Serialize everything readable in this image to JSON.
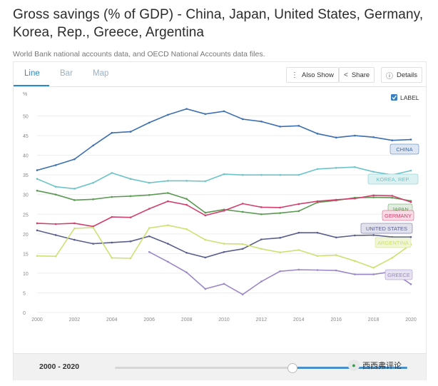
{
  "title": "Gross savings (% of GDP) - China, Japan, United States, Germany, Korea, Rep., Greece, Argentina",
  "subtitle": "World Bank national accounts data, and OECD National Accounts data files.",
  "tabs": [
    "Line",
    "Bar",
    "Map"
  ],
  "buttons": {
    "also_show": "Also Show",
    "share": "Share",
    "details": "Details"
  },
  "label_toggle": "LABEL",
  "range_label": "2000 - 2020",
  "watermark": "西西弗评论",
  "chart_data": {
    "type": "line",
    "ylabel": "%",
    "ylim": [
      0,
      55
    ],
    "yticks": [
      0,
      5,
      10,
      15,
      20,
      25,
      30,
      35,
      40,
      45,
      50
    ],
    "xlim": [
      2000,
      2020
    ],
    "xticks": [
      2000,
      2002,
      2004,
      2006,
      2008,
      2010,
      2012,
      2014,
      2016,
      2018,
      2020
    ],
    "x": [
      2000,
      2001,
      2002,
      2003,
      2004,
      2005,
      2006,
      2007,
      2008,
      2009,
      2010,
      2011,
      2012,
      2013,
      2014,
      2015,
      2016,
      2017,
      2018,
      2019,
      2020
    ],
    "series": [
      {
        "name": "CHINA",
        "color": "#3c6fb0",
        "label_bg": "#dde6f3",
        "values": [
          36.2,
          37.5,
          39.0,
          42.5,
          45.7,
          46.0,
          48.3,
          50.3,
          51.8,
          50.5,
          51.2,
          49.2,
          48.6,
          47.3,
          47.5,
          45.5,
          44.5,
          45.0,
          44.6,
          43.8,
          44.0
        ]
      },
      {
        "name": "KOREA, REP.",
        "color": "#6cc4c9",
        "label_bg": "#dcf1f2",
        "values": [
          34.0,
          32.0,
          31.5,
          33.0,
          35.5,
          34.0,
          33.0,
          33.5,
          33.5,
          33.4,
          35.2,
          35.0,
          35.0,
          35.0,
          35.0,
          36.5,
          36.8,
          37.0,
          35.8,
          35.0,
          36.1
        ]
      },
      {
        "name": "JAPAN",
        "color": "#5b9a52",
        "label_bg": "#e1ede0",
        "values": [
          31.0,
          30.0,
          28.6,
          28.8,
          29.4,
          29.6,
          29.9,
          30.4,
          28.9,
          25.4,
          26.2,
          25.6,
          25.0,
          25.3,
          25.8,
          28.0,
          28.5,
          29.2,
          29.3,
          29.2,
          28.4
        ]
      },
      {
        "name": "GERMANY",
        "color": "#d2406e",
        "label_bg": "#f7dde5",
        "values": [
          22.7,
          22.5,
          22.7,
          21.9,
          24.3,
          24.2,
          26.4,
          28.3,
          27.4,
          24.7,
          25.9,
          27.7,
          26.8,
          26.7,
          27.6,
          28.3,
          28.7,
          29.0,
          29.8,
          29.7,
          28.1
        ]
      },
      {
        "name": "UNITED STATES",
        "color": "#5b5f8d",
        "label_bg": "#e1e2ec",
        "values": [
          20.9,
          19.7,
          18.5,
          17.5,
          17.8,
          18.1,
          19.4,
          17.5,
          15.2,
          14.0,
          15.4,
          16.2,
          18.6,
          19.0,
          20.3,
          20.3,
          19.1,
          19.6,
          19.7,
          19.2,
          19.2
        ]
      },
      {
        "name": "ARGENTINA",
        "color": "#cfe073",
        "label_bg": "#f1f6d8",
        "values": [
          14.4,
          14.3,
          21.4,
          21.6,
          13.9,
          13.8,
          21.5,
          22.2,
          21.2,
          18.5,
          17.5,
          17.4,
          16.2,
          15.3,
          15.9,
          14.4,
          14.6,
          13.1,
          11.4,
          13.9,
          17.3
        ]
      },
      {
        "name": "GREECE",
        "color": "#9b87c5",
        "label_bg": "#e8e3f3",
        "values": [
          null,
          null,
          null,
          null,
          null,
          null,
          15.4,
          12.9,
          10.2,
          6.0,
          7.3,
          4.6,
          7.9,
          10.5,
          10.9,
          10.8,
          10.7,
          9.7,
          9.7,
          10.4,
          7.2
        ]
      }
    ]
  }
}
